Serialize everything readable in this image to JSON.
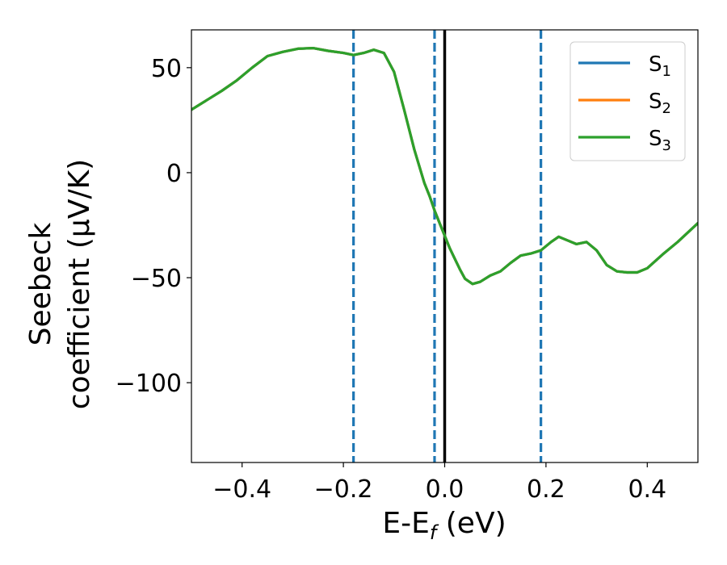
{
  "chart_data": {
    "type": "line",
    "xlabel": "E-E_f (eV)",
    "xlabel_parts": {
      "main": "E-E",
      "sub": "f",
      "unit": " (eV)"
    },
    "ylabel_lines": [
      "Seebeck",
      "coefficient  (μV/K)"
    ],
    "xlim": [
      -0.5,
      0.5
    ],
    "ylim": [
      -138,
      68
    ],
    "xticks": [
      -0.4,
      -0.2,
      0.0,
      0.2,
      0.4
    ],
    "xtick_labels": [
      "−0.4",
      "−0.2",
      "0.0",
      "0.2",
      "0.4"
    ],
    "yticks": [
      -100,
      -50,
      0,
      50
    ],
    "ytick_labels": [
      "−100",
      "−50",
      "0",
      "50"
    ],
    "grid": false,
    "legend_position": "top-right",
    "series": [
      {
        "name": "S",
        "subscript": "1",
        "color": "#1f77b4"
      },
      {
        "name": "S",
        "subscript": "2",
        "color": "#ff7f0e"
      },
      {
        "name": "S",
        "subscript": "3",
        "color": "#2ca02c"
      }
    ],
    "x": [
      -0.5,
      -0.47,
      -0.44,
      -0.41,
      -0.38,
      -0.35,
      -0.32,
      -0.29,
      -0.26,
      -0.23,
      -0.2,
      -0.18,
      -0.16,
      -0.14,
      -0.12,
      -0.1,
      -0.08,
      -0.06,
      -0.04,
      -0.03,
      -0.02,
      -0.01,
      0.0,
      0.01,
      0.02,
      0.03,
      0.04,
      0.055,
      0.07,
      0.09,
      0.11,
      0.13,
      0.15,
      0.17,
      0.19,
      0.21,
      0.225,
      0.24,
      0.26,
      0.28,
      0.3,
      0.32,
      0.34,
      0.36,
      0.38,
      0.4,
      0.43,
      0.46,
      0.5
    ],
    "y": [
      30,
      34.5,
      39,
      44,
      50,
      55.5,
      57.5,
      59,
      59.3,
      58,
      57,
      56,
      57,
      58.5,
      57,
      48,
      30,
      11,
      -5,
      -11,
      -18,
      -24,
      -30,
      -36,
      -41,
      -46,
      -50.5,
      -53,
      -52,
      -49,
      -47,
      -43,
      -39.5,
      -38.5,
      -37,
      -33,
      -30.5,
      -32,
      -34,
      -33,
      -37,
      -44,
      -47,
      -47.5,
      -47.5,
      -45.5,
      -39,
      -33,
      -24
    ],
    "vlines": [
      {
        "x": -0.18,
        "style": "dashed",
        "color": "#1f77b4"
      },
      {
        "x": -0.02,
        "style": "dashed",
        "color": "#1f77b4"
      },
      {
        "x": 0.19,
        "style": "dashed",
        "color": "#1f77b4"
      },
      {
        "x": 0.0,
        "style": "solid",
        "color": "#000000"
      }
    ]
  }
}
